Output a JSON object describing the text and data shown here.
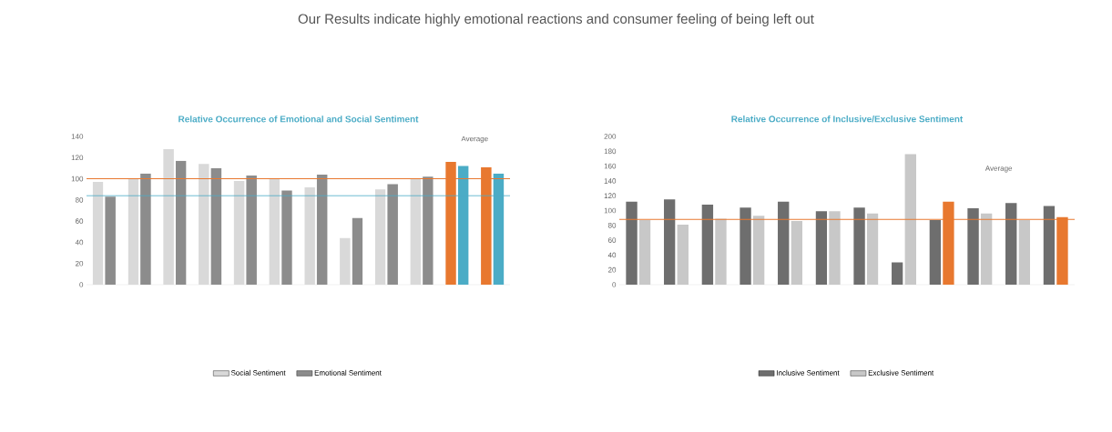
{
  "chart_data": [
    {
      "type": "bar",
      "title": "Relative Occurrence of Emotional and Social Sentiment",
      "annotations": [
        "Our Results indicate highly emotional reactions and consumer feeling of being left out",
        "Average"
      ],
      "categories": [
        null,
        null,
        null,
        null,
        null,
        null,
        null,
        null,
        null,
        null,
        null,
        null
      ],
      "series": [
        {
          "name": "Social Sentiment",
          "color": "#d9d9d9",
          "colors": [
            "#d9d9d9",
            "#d9d9d9",
            "#d9d9d9",
            "#d9d9d9",
            "#d9d9d9",
            "#d9d9d9",
            "#d9d9d9",
            "#d9d9d9",
            "#d9d9d9",
            "#d9d9d9",
            "#e8782f",
            "#e8782f"
          ],
          "values": [
            97,
            100,
            128,
            114,
            98,
            100,
            92,
            44,
            90,
            100,
            116,
            111
          ]
        },
        {
          "name": "Emotional Sentiment",
          "color": "#8c8c8c",
          "colors": [
            "#8c8c8c",
            "#8c8c8c",
            "#8c8c8c",
            "#8c8c8c",
            "#8c8c8c",
            "#8c8c8c",
            "#8c8c8c",
            "#8c8c8c",
            "#8c8c8c",
            "#8c8c8c",
            "#4bacc6",
            "#4bacc6"
          ],
          "values": [
            83,
            105,
            117,
            110,
            103,
            89,
            104,
            63,
            95,
            102,
            112,
            105
          ]
        }
      ],
      "ylim": [
        0,
        140
      ],
      "yticks": [
        0,
        20,
        40,
        60,
        80,
        100,
        120,
        140
      ],
      "ref_lines": [
        {
          "axis": "y",
          "value": 100,
          "color": "#e8782f"
        },
        {
          "axis": "y",
          "value": 84,
          "color": "#4bacc6"
        }
      ],
      "tick_labels": "y",
      "legend": "bottom",
      "grid": false
    },
    {
      "type": "bar",
      "title": "Relative Occurrence of Inclusive/Exclusive Sentiment",
      "annotations": [
        "Average"
      ],
      "categories": [
        null,
        null,
        null,
        null,
        null,
        null,
        null,
        null,
        null,
        null,
        null,
        null
      ],
      "series": [
        {
          "name": "Inclusive Sentiment",
          "color": "#6e6e6e",
          "colors": [
            "#6e6e6e",
            "#6e6e6e",
            "#6e6e6e",
            "#6e6e6e",
            "#6e6e6e",
            "#6e6e6e",
            "#6e6e6e",
            "#6e6e6e",
            "#6e6e6e",
            "#6e6e6e",
            "#6e6e6e",
            "#6e6e6e"
          ],
          "values": [
            112,
            115,
            108,
            104,
            112,
            99,
            104,
            30,
            87,
            103,
            110,
            106
          ]
        },
        {
          "name": "Exclusive Sentiment",
          "color": "#c8c8c8",
          "colors": [
            "#c8c8c8",
            "#c8c8c8",
            "#c8c8c8",
            "#c8c8c8",
            "#c8c8c8",
            "#c8c8c8",
            "#c8c8c8",
            "#c8c8c8",
            "#e8782f",
            "#c8c8c8",
            "#c8c8c8",
            "#e8782f"
          ],
          "values": [
            87,
            81,
            89,
            93,
            86,
            99,
            96,
            176,
            112,
            96,
            87,
            91
          ]
        }
      ],
      "ylim": [
        0,
        200
      ],
      "yticks": [
        0,
        20,
        40,
        60,
        80,
        100,
        120,
        140,
        160,
        180,
        200
      ],
      "ref_lines": [
        {
          "axis": "y",
          "value": 88,
          "color": "#e8782f"
        }
      ],
      "tick_labels": "y",
      "legend": "bottom",
      "grid": false
    }
  ]
}
